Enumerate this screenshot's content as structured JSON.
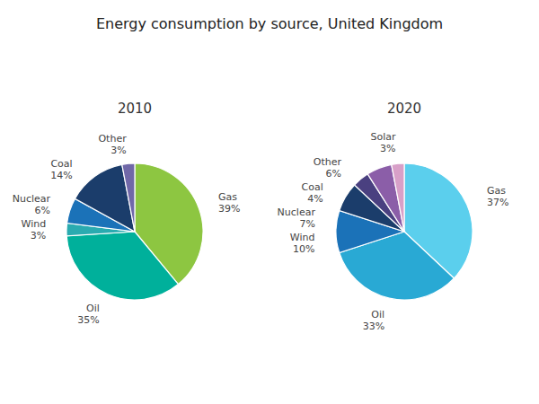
{
  "title": "Energy consumption by source, United Kingdom",
  "chart_data": [
    {
      "type": "pie",
      "title": "2010",
      "categories": [
        "Gas",
        "Oil",
        "Wind",
        "Nuclear",
        "Coal",
        "Other"
      ],
      "values": [
        39,
        35,
        3,
        6,
        14,
        3
      ],
      "value_labels": [
        "39%",
        "35%",
        "3%",
        "6%",
        "14%",
        "3%"
      ],
      "colors": [
        "#8DC641",
        "#00B09B",
        "#2AABB0",
        "#1B72B8",
        "#1B3D6B",
        "#7068A8"
      ],
      "data_labels": true
    },
    {
      "type": "pie",
      "title": "2020",
      "categories": [
        "Gas",
        "Oil",
        "Wind",
        "Nuclear",
        "Coal",
        "Other",
        "Solar"
      ],
      "values": [
        37,
        33,
        10,
        7,
        4,
        6,
        3
      ],
      "value_labels": [
        "37%",
        "33%",
        "10%",
        "7%",
        "4%",
        "6%",
        "3%"
      ],
      "colors": [
        "#5BCFED",
        "#29A9D4",
        "#1B72B8",
        "#1B3D6B",
        "#4A4080",
        "#8B5EA8",
        "#D8A0C8"
      ],
      "data_labels": true
    }
  ]
}
